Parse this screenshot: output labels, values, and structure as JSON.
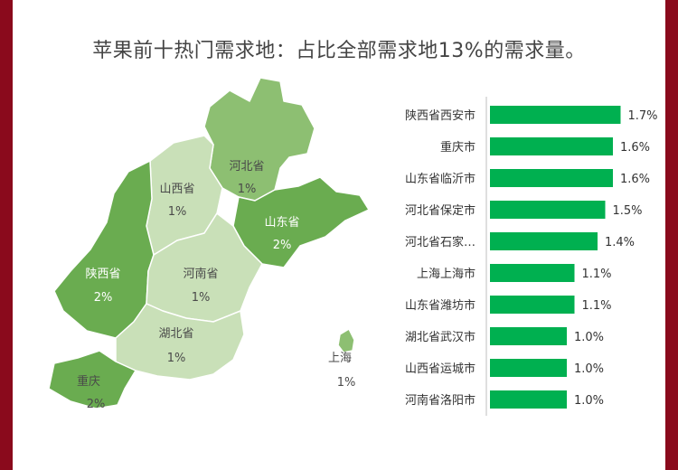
{
  "title": "苹果前十热门需求地：占比全部需求地13%的需求量。",
  "map": {
    "regions": [
      {
        "id": "heibei",
        "name": "河北省",
        "value": "1%",
        "color": "#8dbf72"
      },
      {
        "id": "shanxi",
        "name": "山西省",
        "value": "1%",
        "color": "#c9e0b8"
      },
      {
        "id": "shandong",
        "name": "山东省",
        "value": "2%",
        "color": "#6aac50"
      },
      {
        "id": "shaanxi",
        "name": "陕西省",
        "value": "2%",
        "color": "#6aac50"
      },
      {
        "id": "henan",
        "name": "河南省",
        "value": "1%",
        "color": "#c9e0b8"
      },
      {
        "id": "hubei",
        "name": "湖北省",
        "value": "1%",
        "color": "#c9e0b8"
      },
      {
        "id": "chongqing",
        "name": "重庆",
        "value": "2%",
        "color": "#6aac50"
      },
      {
        "id": "shanghai",
        "name": "上海",
        "value": "1%",
        "color": "#8dbf72"
      }
    ]
  },
  "chart_data": {
    "type": "bar",
    "orientation": "horizontal",
    "categories": [
      "陕西省西安市",
      "重庆市",
      "山东省临沂市",
      "河北省保定市",
      "河北省石家…",
      "上海上海市",
      "山东省潍坊市",
      "湖北省武汉市",
      "山西省运城市",
      "河南省洛阳市"
    ],
    "values": [
      1.7,
      1.6,
      1.6,
      1.5,
      1.4,
      1.1,
      1.1,
      1.0,
      1.0,
      1.0
    ],
    "value_labels": [
      "1.7%",
      "1.6%",
      "1.6%",
      "1.5%",
      "1.4%",
      "1.1%",
      "1.1%",
      "1.0%",
      "1.0%",
      "1.0%"
    ],
    "bar_color": "#00b050",
    "xlim": [
      0,
      1.8
    ],
    "grid": false
  }
}
